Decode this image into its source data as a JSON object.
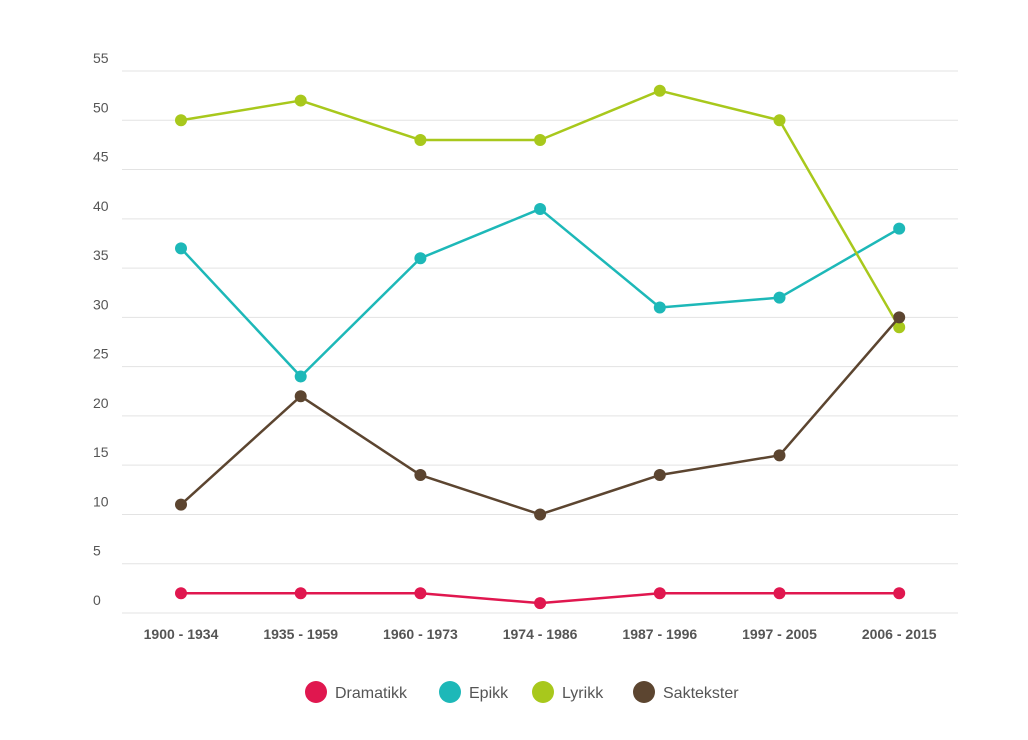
{
  "chart_data": {
    "type": "line",
    "title": "",
    "xlabel": "",
    "ylabel": "",
    "categories": [
      "1900 - 1934",
      "1935 - 1959",
      "1960 - 1973",
      "1974 - 1986",
      "1987 - 1996",
      "1997 - 2005",
      "2006 - 2015"
    ],
    "ylim": [
      0,
      55
    ],
    "yticks": [
      0,
      5,
      10,
      15,
      20,
      25,
      30,
      35,
      40,
      45,
      50,
      55
    ],
    "grid": true,
    "legend_position": "bottom",
    "series": [
      {
        "name": "Dramatikk",
        "color": "#e0174f",
        "values": [
          2,
          2,
          2,
          1,
          2,
          2,
          2
        ]
      },
      {
        "name": "Epikk",
        "color": "#1db8b8",
        "values": [
          37,
          24,
          36,
          41,
          31,
          32,
          39
        ]
      },
      {
        "name": "Lyrikk",
        "color": "#a8c81c",
        "values": [
          50,
          52,
          48,
          48,
          53,
          50,
          29
        ]
      },
      {
        "name": "Saktekster",
        "color": "#5c4530",
        "values": [
          11,
          22,
          14,
          10,
          14,
          16,
          30
        ]
      }
    ]
  }
}
